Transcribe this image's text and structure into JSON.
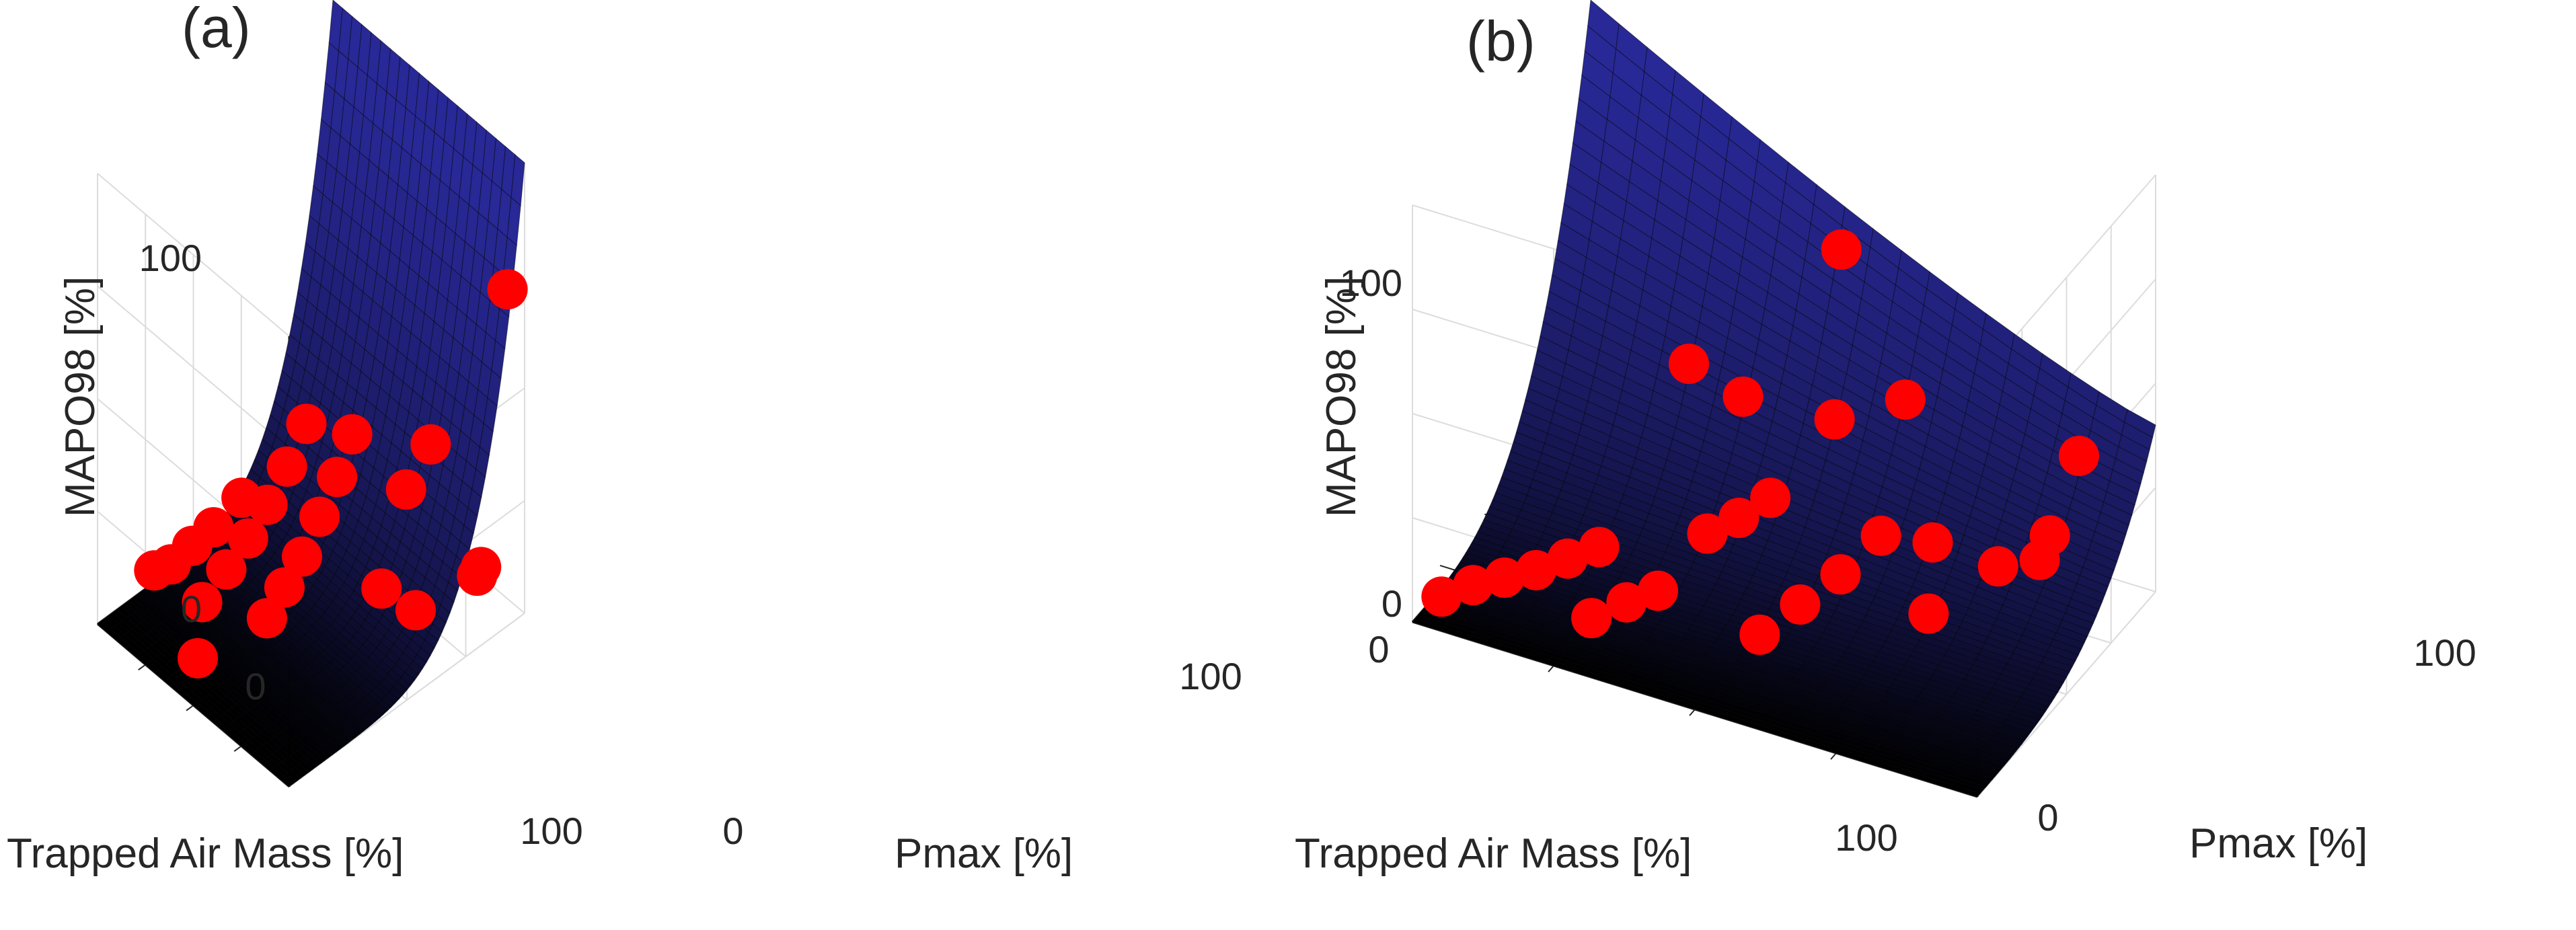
{
  "chart_data": [
    {
      "type": "surface3d",
      "panel_label": "(a)",
      "zlabel": "MAPO98 [%]",
      "xlabel": "Trapped Air Mass  [%]",
      "ylabel": "Pmax [%]",
      "zlim": [
        0,
        100
      ],
      "xlim": [
        0,
        100
      ],
      "ylim": [
        0,
        100
      ],
      "z_tick_labels": [
        "0",
        "100"
      ],
      "x_tick_labels": [
        "0",
        "100"
      ],
      "y_tick_labels": [
        "0",
        "100"
      ],
      "surface_model": "MAPO98 depends on Pmax only; flat near 0 for low Pmax, rising steeply to ~100 at high Pmax",
      "surface_color": "#2b2b8f",
      "marker_color": "#ff0000",
      "points": [
        {
          "tam": 5,
          "pmax": 20,
          "mapo": 6
        },
        {
          "tam": 10,
          "pmax": 23,
          "mapo": 8
        },
        {
          "tam": 15,
          "pmax": 28,
          "mapo": 12
        },
        {
          "tam": 20,
          "pmax": 33,
          "mapo": 16
        },
        {
          "tam": 26,
          "pmax": 40,
          "mapo": 22
        },
        {
          "tam": 30,
          "pmax": 20,
          "mapo": 8
        },
        {
          "tam": 34,
          "pmax": 27,
          "mapo": 14
        },
        {
          "tam": 38,
          "pmax": 33,
          "mapo": 20
        },
        {
          "tam": 42,
          "pmax": 38,
          "mapo": 27
        },
        {
          "tam": 46,
          "pmax": 43,
          "mapo": 35
        },
        {
          "tam": 50,
          "pmax": 48,
          "mapo": 44
        },
        {
          "tam": 54,
          "pmax": 28,
          "mapo": 10
        },
        {
          "tam": 57,
          "pmax": 33,
          "mapo": 16
        },
        {
          "tam": 60,
          "pmax": 38,
          "mapo": 22
        },
        {
          "tam": 63,
          "pmax": 43,
          "mapo": 30
        },
        {
          "tam": 66,
          "pmax": 48,
          "mapo": 38
        },
        {
          "tam": 69,
          "pmax": 52,
          "mapo": 47
        },
        {
          "tam": 40,
          "pmax": 10,
          "mapo": 3
        },
        {
          "tam": 75,
          "pmax": 70,
          "mapo": 30
        },
        {
          "tam": 78,
          "pmax": 78,
          "mapo": 38
        },
        {
          "tam": 72,
          "pmax": 62,
          "mapo": 10
        },
        {
          "tam": 80,
          "pmax": 70,
          "mapo": 5
        },
        {
          "tam": 92,
          "pmax": 88,
          "mapo": 12
        },
        {
          "tam": 85,
          "pmax": 92,
          "mapo": 6
        },
        {
          "tam": 96,
          "pmax": 96,
          "mapo": 72
        }
      ]
    },
    {
      "type": "surface3d",
      "panel_label": "(b)",
      "zlabel": "MAPO98 [%]",
      "xlabel": "Trapped Air Mass  [%]",
      "ylabel": "Pmax [%]",
      "zlim": [
        0,
        100
      ],
      "xlim": [
        0,
        100
      ],
      "ylim": [
        0,
        100
      ],
      "z_tick_labels": [
        "0",
        "100"
      ],
      "x_tick_labels": [
        "0",
        "100"
      ],
      "y_tick_labels": [
        "0",
        "100"
      ],
      "surface_model": "MAPO98 rises with both Trapped Air Mass and Pmax; highest at high Pmax and low Trapped Air Mass",
      "surface_color": "#2b2b8f",
      "marker_color": "#ff0000",
      "points": [
        {
          "tam": 2,
          "pmax": 10,
          "mapo": 2
        },
        {
          "tam": 6,
          "pmax": 15,
          "mapo": 4
        },
        {
          "tam": 10,
          "pmax": 20,
          "mapo": 5
        },
        {
          "tam": 14,
          "pmax": 25,
          "mapo": 6
        },
        {
          "tam": 18,
          "pmax": 30,
          "mapo": 8
        },
        {
          "tam": 22,
          "pmax": 35,
          "mapo": 10
        },
        {
          "tam": 26,
          "pmax": 18,
          "mapo": 3
        },
        {
          "tam": 30,
          "pmax": 25,
          "mapo": 5
        },
        {
          "tam": 34,
          "pmax": 30,
          "mapo": 7
        },
        {
          "tam": 38,
          "pmax": 45,
          "mapo": 15
        },
        {
          "tam": 42,
          "pmax": 50,
          "mapo": 18
        },
        {
          "tam": 46,
          "pmax": 55,
          "mapo": 22
        },
        {
          "tam": 30,
          "pmax": 60,
          "mapo": 45
        },
        {
          "tam": 38,
          "pmax": 65,
          "mapo": 38
        },
        {
          "tam": 52,
          "pmax": 30,
          "mapo": 4
        },
        {
          "tam": 56,
          "pmax": 40,
          "mapo": 8
        },
        {
          "tam": 60,
          "pmax": 50,
          "mapo": 12
        },
        {
          "tam": 64,
          "pmax": 60,
          "mapo": 18
        },
        {
          "tam": 52,
          "pmax": 72,
          "mapo": 35
        },
        {
          "tam": 62,
          "pmax": 80,
          "mapo": 40
        },
        {
          "tam": 70,
          "pmax": 70,
          "mapo": 14
        },
        {
          "tam": 74,
          "pmax": 55,
          "mapo": 6
        },
        {
          "tam": 80,
          "pmax": 75,
          "mapo": 10
        },
        {
          "tam": 86,
          "pmax": 85,
          "mapo": 15
        },
        {
          "tam": 88,
          "pmax": 95,
          "mapo": 30
        },
        {
          "tam": 82,
          "pmax": 92,
          "mapo": 4
        },
        {
          "tam": 45,
          "pmax": 98,
          "mapo": 60
        }
      ]
    }
  ]
}
